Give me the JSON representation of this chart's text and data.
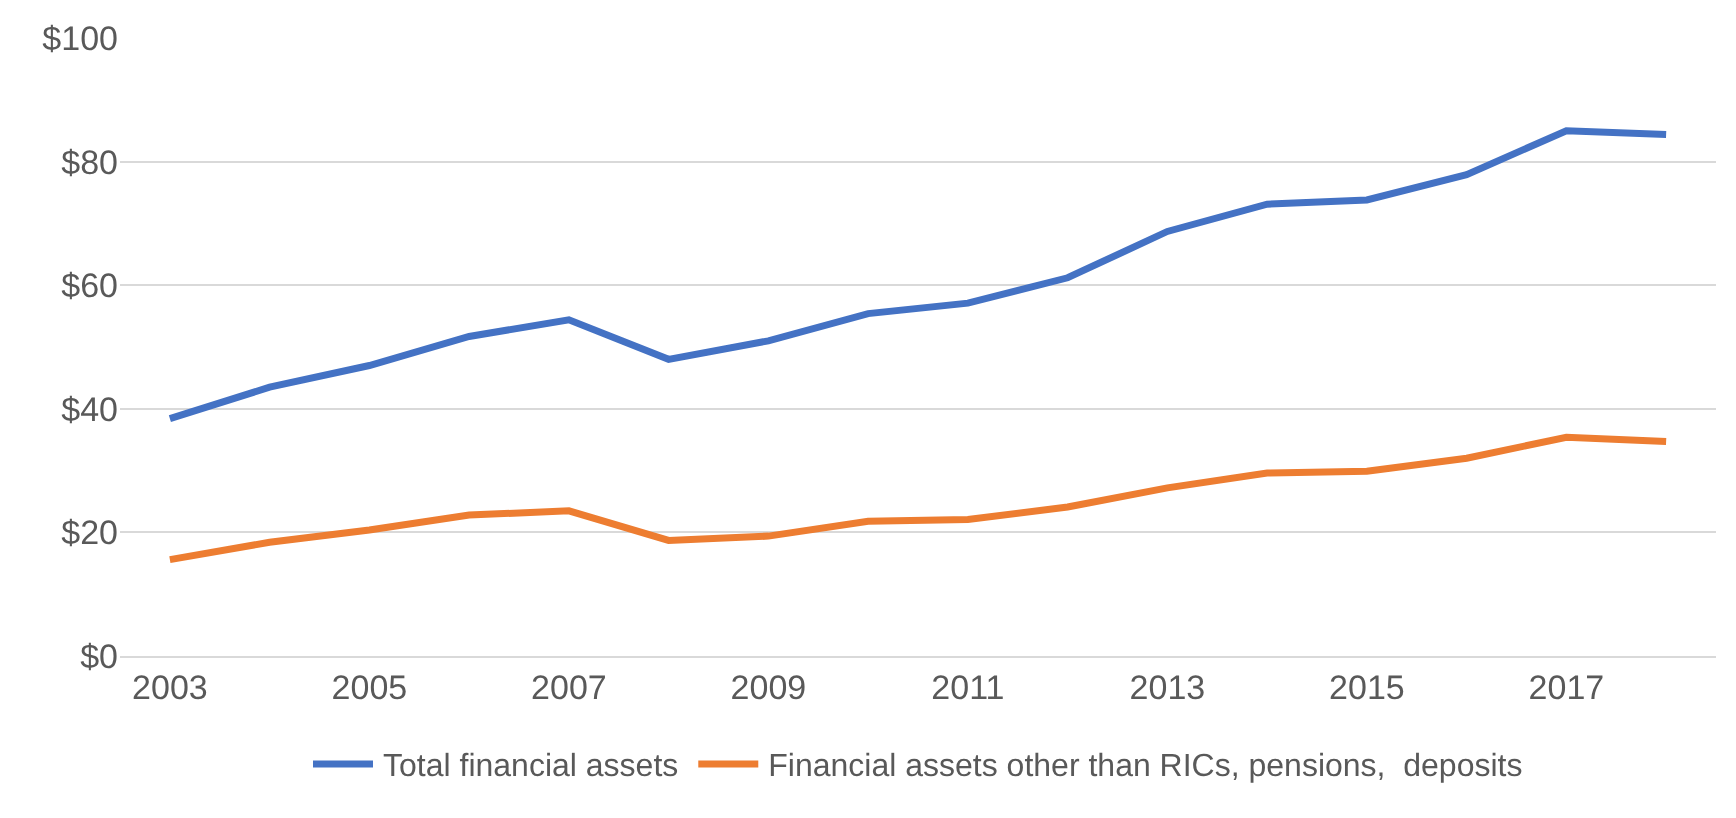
{
  "chart_data": {
    "type": "line",
    "x": [
      2003,
      2004,
      2005,
      2006,
      2007,
      2008,
      2009,
      2010,
      2011,
      2012,
      2013,
      2014,
      2015,
      2016,
      2017,
      2018
    ],
    "series": [
      {
        "name": "Total financial assets",
        "color": "#4472c4",
        "values": [
          38.4,
          43.5,
          47,
          51.7,
          54.4,
          48,
          51,
          55.4,
          57.1,
          61.2,
          68.7,
          73.1,
          73.8,
          77.9,
          85,
          84.4
        ]
      },
      {
        "name": "Financial assets other than RICs, pensions,  deposits",
        "color": "#ed7d31",
        "values": [
          15.6,
          18.4,
          20.4,
          22.8,
          23.5,
          18.7,
          19.4,
          21.8,
          22.1,
          24.1,
          27.2,
          29.6,
          29.9,
          32,
          35.4,
          34.7
        ]
      }
    ],
    "xlim": [
      2002.5,
      2018.5
    ],
    "xticks": [
      2003,
      2005,
      2007,
      2009,
      2011,
      2013,
      2015,
      2017
    ],
    "ylim": [
      0,
      100
    ],
    "yticks": [
      {
        "value": 0,
        "label": "$0"
      },
      {
        "value": 20,
        "label": "$20"
      },
      {
        "value": 40,
        "label": "$40"
      },
      {
        "value": 60,
        "label": "$60"
      },
      {
        "value": 80,
        "label": "$80"
      },
      {
        "value": 100,
        "label": "$100"
      }
    ],
    "grid": "y",
    "legend": "bottom",
    "marker": "none",
    "line_style": "solid"
  }
}
